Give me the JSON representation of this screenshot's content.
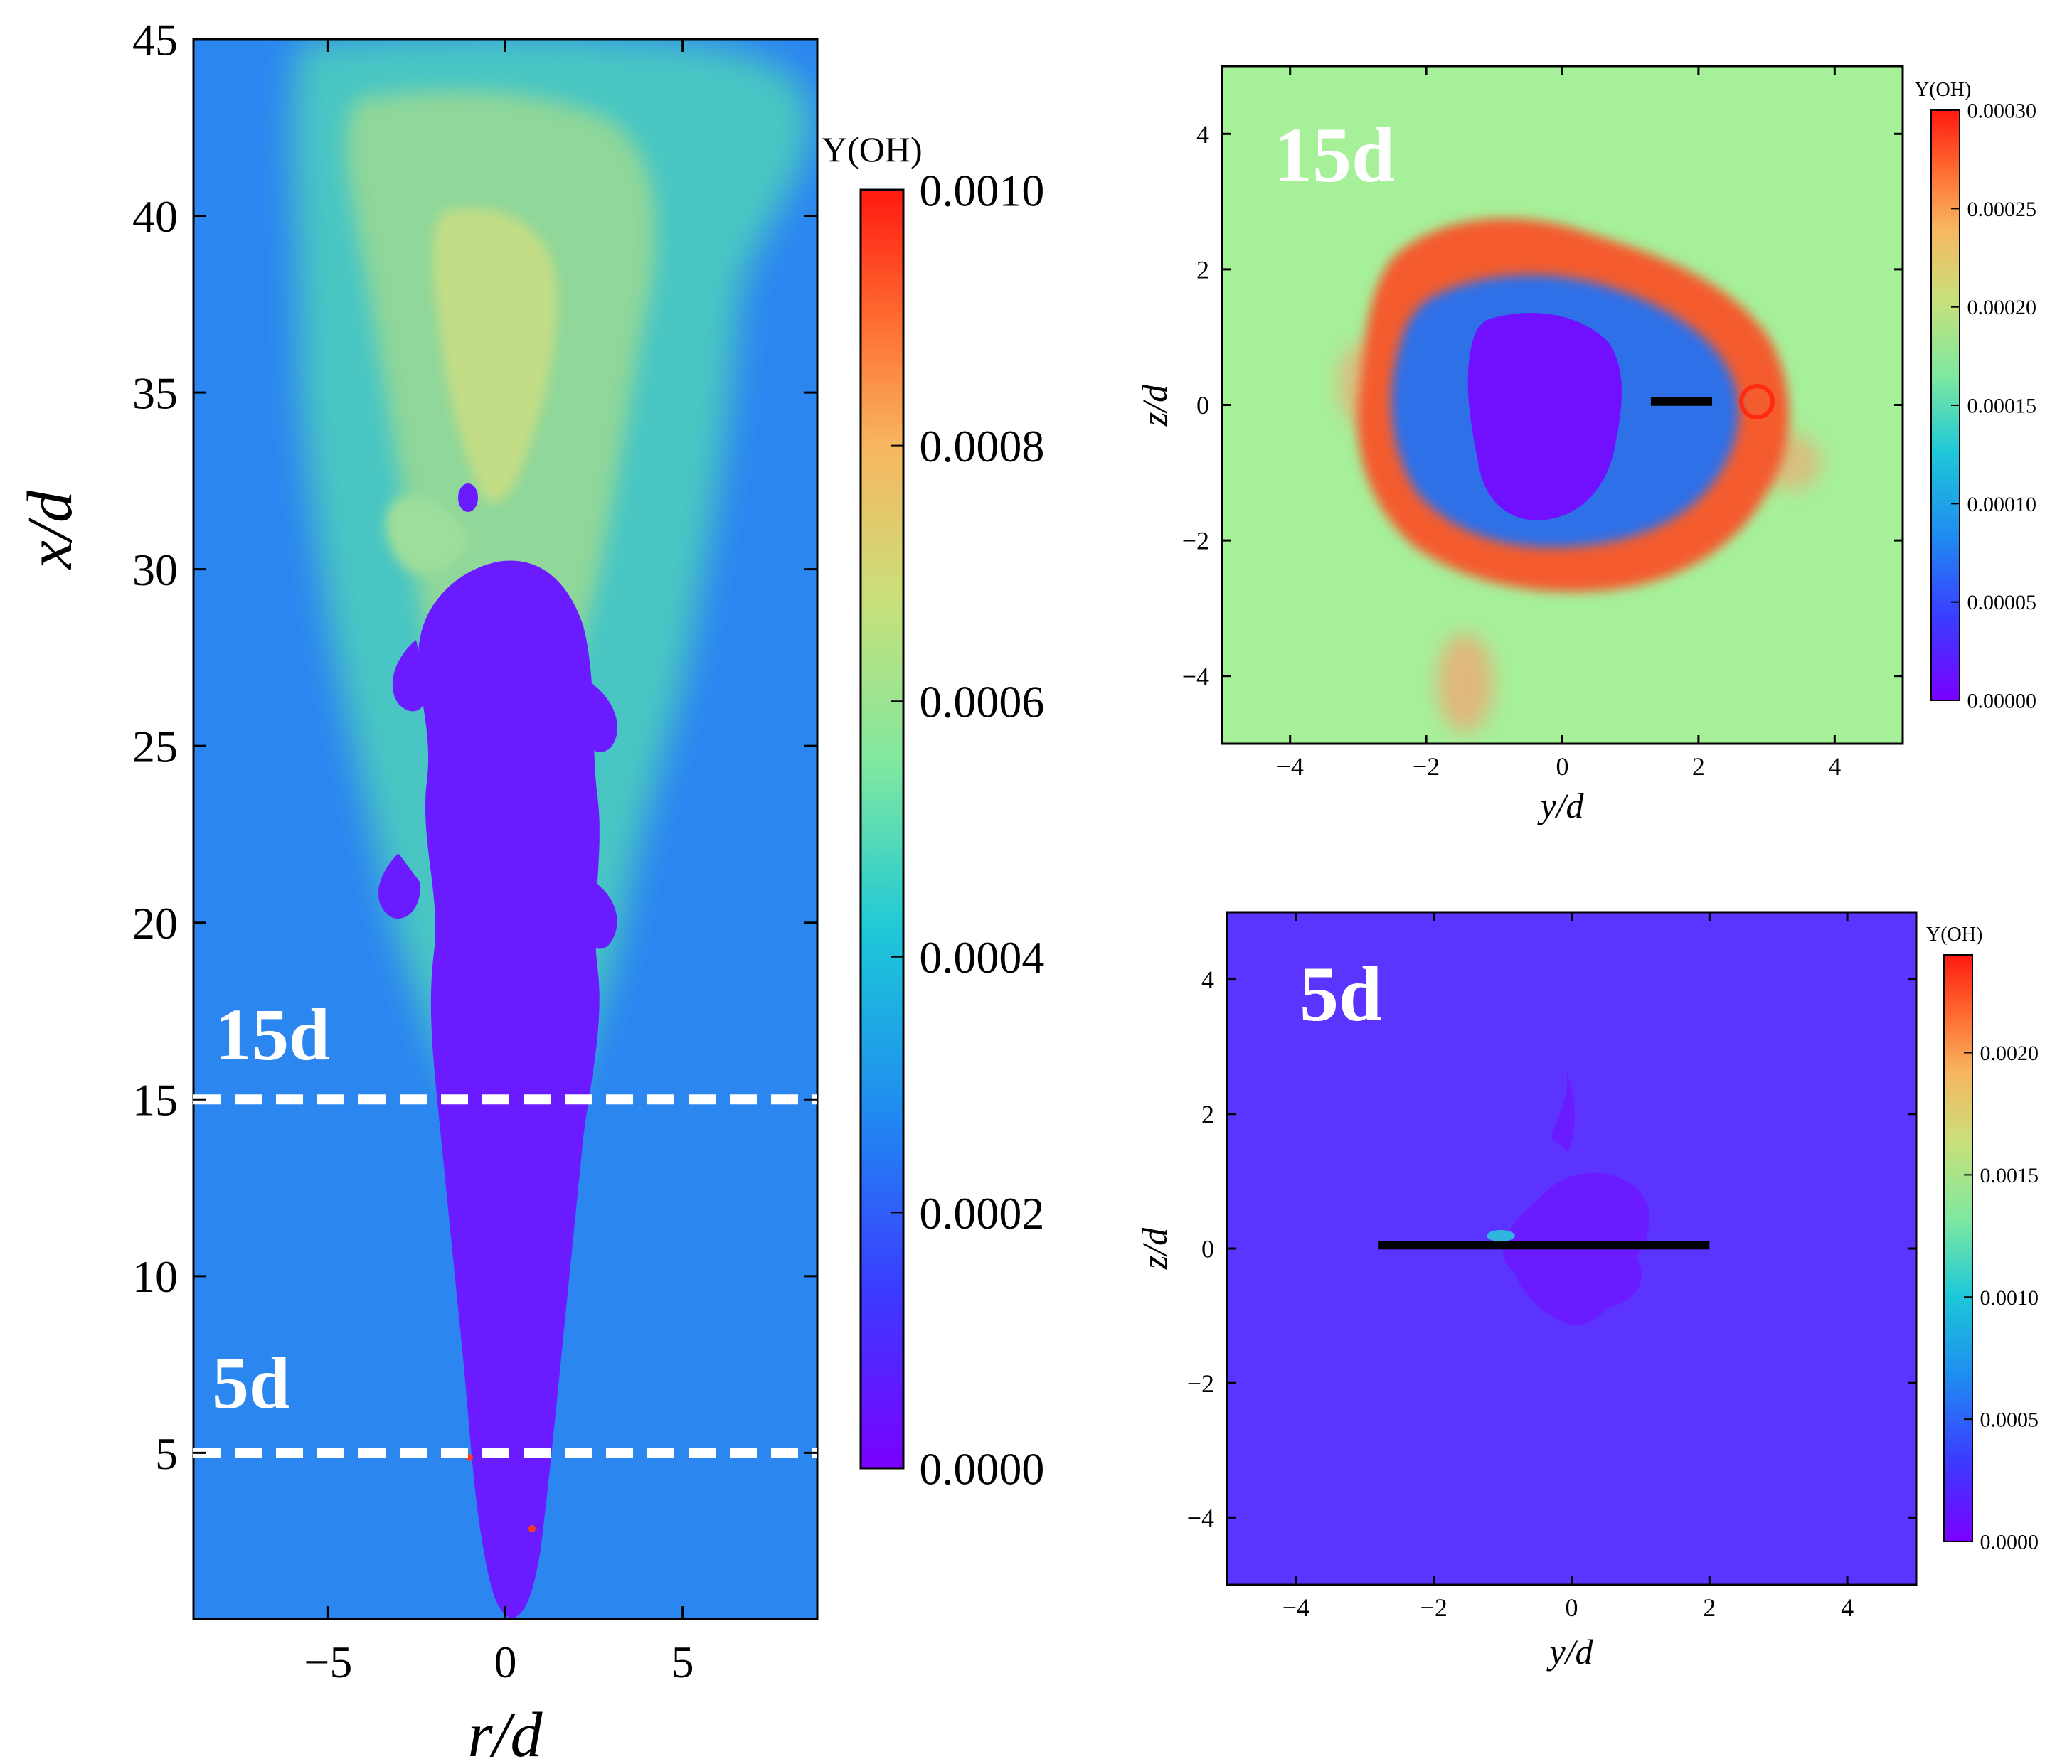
{
  "chart_data": [
    {
      "type": "heatmap",
      "panel": "left",
      "field": "Y(OH)",
      "xlabel": "r/d",
      "ylabel": "x/d",
      "xlim": [
        -8.8,
        8.8
      ],
      "ylim": [
        0.3,
        45
      ],
      "xticks": [
        -5,
        0,
        5
      ],
      "yticks": [
        5,
        10,
        15,
        20,
        25,
        30,
        35,
        40,
        45
      ],
      "colorbar": {
        "label": "Y(OH)",
        "min": 0.0,
        "max": 0.001,
        "ticks": [
          "0.0000",
          "0.0002",
          "0.0004",
          "0.0006",
          "0.0008",
          "0.0010"
        ]
      },
      "background_value": 0.00017,
      "cut_lines": [
        {
          "label": "15d",
          "x_over_d": 15
        },
        {
          "label": "5d",
          "x_over_d": 5
        }
      ]
    },
    {
      "type": "heatmap",
      "panel": "top-right",
      "field": "Y(OH)",
      "annotation": "15d",
      "xlabel": "y/d",
      "ylabel": "z/d",
      "xlim": [
        -5,
        5
      ],
      "ylim": [
        -5,
        5
      ],
      "xticks": [
        -4,
        -2,
        0,
        2,
        4
      ],
      "yticks": [
        -4,
        -2,
        0,
        2,
        4
      ],
      "colorbar": {
        "label": "Y(OH)",
        "min": 0.0,
        "max": 0.0003,
        "ticks": [
          "0.00000",
          "0.00005",
          "0.00010",
          "0.00015",
          "0.00020",
          "0.00025",
          "0.00030"
        ]
      },
      "background_value": 0.00017,
      "probe_line": {
        "y_from": 1.3,
        "y_to": 2.2,
        "z": 0.05
      }
    },
    {
      "type": "heatmap",
      "panel": "bottom-right",
      "field": "Y(OH)",
      "annotation": "5d",
      "xlabel": "y/d",
      "ylabel": "z/d",
      "xlim": [
        -5,
        5
      ],
      "ylim": [
        -5,
        5
      ],
      "xticks": [
        -4,
        -2,
        0,
        2,
        4
      ],
      "yticks": [
        -4,
        -2,
        0,
        2,
        4
      ],
      "colorbar": {
        "label": "Y(OH)",
        "min": 0.0,
        "max": 0.0024,
        "ticks": [
          "0.0000",
          "0.0005",
          "0.0010",
          "0.0015",
          "0.0020"
        ]
      },
      "background_value": 0.0,
      "probe_line": {
        "y_from": -2.8,
        "y_to": 2.0,
        "z": 0.05
      }
    }
  ]
}
